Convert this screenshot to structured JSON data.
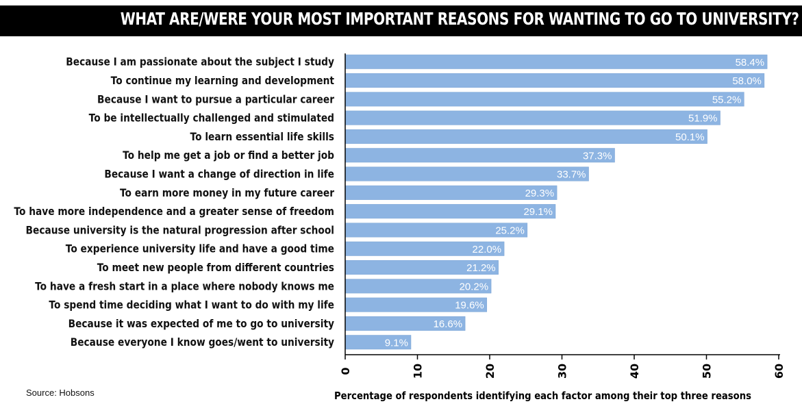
{
  "title": "WHAT ARE/WERE YOUR MOST IMPORTANT REASONS FOR WANTING TO GO TO UNIVERSITY?",
  "source": "Source: Hobsons",
  "colors": {
    "bar": "#8db4e2",
    "title_bg": "#000000",
    "title_text": "#ffffff",
    "axis": "#000000",
    "value_label": "#ffffff"
  },
  "chart_data": {
    "type": "bar",
    "orientation": "horizontal",
    "title": "WHAT ARE/WERE YOUR MOST IMPORTANT REASONS FOR WANTING TO GO TO UNIVERSITY?",
    "xlabel": "Percentage of respondents identifying each factor among their top three reasons",
    "ylabel": "",
    "xlim": [
      0,
      60
    ],
    "xticks": [
      "0",
      "10",
      "20",
      "30",
      "40",
      "50",
      "60"
    ],
    "grid": false,
    "legend": "none",
    "categories": [
      "Because I am passionate about the subject I study",
      "To continue my learning and development",
      "Because I want to pursue a particular career",
      "To be intellectually challenged and stimulated",
      "To learn essential life skills",
      "To help me get a job or find a better job",
      "Because I want a change of direction in life",
      "To earn more money in my future career",
      "To have more independence and a greater sense of freedom",
      "Because university is the natural progression after school",
      "To experience university life and have a good time",
      "To meet new people from different countries",
      "To have a fresh start in a place where nobody knows me",
      "To spend time deciding what I want to do with my life",
      "Because it was expected of me to go to university",
      "Because everyone I know goes/went to university"
    ],
    "values": [
      58.4,
      58.0,
      55.2,
      51.9,
      50.1,
      37.3,
      33.7,
      29.3,
      29.1,
      25.2,
      22.0,
      21.2,
      20.2,
      19.6,
      16.6,
      9.1
    ],
    "value_labels": [
      "58.4%",
      "58.0%",
      "55.2%",
      "51.9%",
      "50.1%",
      "37.3%",
      "33.7%",
      "29.3%",
      "29.1%",
      "25.2%",
      "22.0%",
      "21.2%",
      "20.2%",
      "19.6%",
      "16.6%",
      "9.1%"
    ]
  }
}
